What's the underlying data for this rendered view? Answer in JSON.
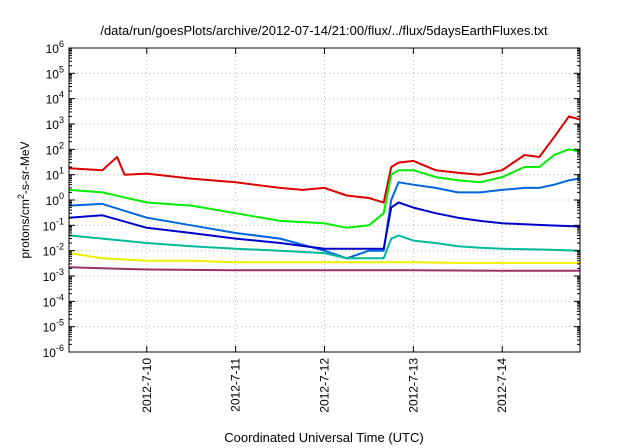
{
  "chart_data": {
    "type": "line",
    "title": "/data/run/goesPlots/archive/2012-07-14/21:00/flux/../flux/5daysEarthFluxes.txt",
    "xlabel": "Coordinated Universal Time (UTC)",
    "ylabel": {
      "base": "protons/cm",
      "sup": "2",
      "rest": "-s-sr-MeV"
    },
    "x_range": [
      "2012-07-09T03:00",
      "2012-07-14T21:00"
    ],
    "x_ticks": [
      "2012-7-10",
      "2012-7-11",
      "2012-7-12",
      "2012-7-13",
      "2012-7-14"
    ],
    "y_scale": "log",
    "y_range": [
      1e-06,
      1000000.0
    ],
    "y_ticks": [
      {
        "base": "10",
        "exp": "-6"
      },
      {
        "base": "10",
        "exp": "-5"
      },
      {
        "base": "10",
        "exp": "-4"
      },
      {
        "base": "10",
        "exp": "-3"
      },
      {
        "base": "10",
        "exp": "-2"
      },
      {
        "base": "10",
        "exp": "-1"
      },
      {
        "base": "10",
        "exp": "0"
      },
      {
        "base": "10",
        "exp": "1"
      },
      {
        "base": "10",
        "exp": "2"
      },
      {
        "base": "10",
        "exp": "3"
      },
      {
        "base": "10",
        "exp": "4"
      },
      {
        "base": "10",
        "exp": "5"
      },
      {
        "base": "10",
        "exp": "6"
      }
    ],
    "grid": true,
    "series": [
      {
        "color": "#dd0000",
        "x": [
          "2012-07-09T03:00",
          "2012-07-09T12:00",
          "2012-07-09T16:00",
          "2012-07-09T18:00",
          "2012-07-10T00:00",
          "2012-07-10T12:00",
          "2012-07-11T00:00",
          "2012-07-11T12:00",
          "2012-07-11T18:00",
          "2012-07-12T00:00",
          "2012-07-12T06:00",
          "2012-07-12T12:00",
          "2012-07-12T16:00",
          "2012-07-12T18:00",
          "2012-07-12T20:00",
          "2012-07-13T00:00",
          "2012-07-13T06:00",
          "2012-07-13T12:00",
          "2012-07-13T18:00",
          "2012-07-14T00:00",
          "2012-07-14T06:00",
          "2012-07-14T10:00",
          "2012-07-14T14:00",
          "2012-07-14T18:00",
          "2012-07-14T21:00"
        ],
        "y": [
          18,
          15,
          50,
          10,
          11,
          7,
          5,
          3,
          2.5,
          3,
          1.5,
          1.2,
          0.8,
          20,
          30,
          35,
          15,
          12,
          10,
          15,
          60,
          50,
          300,
          2000,
          1500
        ]
      },
      {
        "color": "#00ee00",
        "x": [
          "2012-07-09T03:00",
          "2012-07-09T12:00",
          "2012-07-10T00:00",
          "2012-07-10T12:00",
          "2012-07-11T00:00",
          "2012-07-11T12:00",
          "2012-07-12T00:00",
          "2012-07-12T06:00",
          "2012-07-12T12:00",
          "2012-07-12T16:00",
          "2012-07-12T18:00",
          "2012-07-12T20:00",
          "2012-07-13T00:00",
          "2012-07-13T06:00",
          "2012-07-13T12:00",
          "2012-07-13T18:00",
          "2012-07-14T00:00",
          "2012-07-14T06:00",
          "2012-07-14T10:00",
          "2012-07-14T14:00",
          "2012-07-14T18:00",
          "2012-07-14T21:00"
        ],
        "y": [
          2.5,
          2,
          0.8,
          0.6,
          0.3,
          0.15,
          0.12,
          0.08,
          0.1,
          0.3,
          10,
          15,
          15,
          8,
          6,
          5,
          8,
          20,
          20,
          60,
          100,
          80
        ]
      },
      {
        "color": "#0066dd",
        "x": [
          "2012-07-09T03:00",
          "2012-07-09T12:00",
          "2012-07-10T00:00",
          "2012-07-10T12:00",
          "2012-07-11T00:00",
          "2012-07-11T12:00",
          "2012-07-12T00:00",
          "2012-07-12T06:00",
          "2012-07-12T12:00",
          "2012-07-12T16:00",
          "2012-07-12T18:00",
          "2012-07-12T20:00",
          "2012-07-13T00:00",
          "2012-07-13T06:00",
          "2012-07-13T12:00",
          "2012-07-13T18:00",
          "2012-07-14T00:00",
          "2012-07-14T06:00",
          "2012-07-14T10:00",
          "2012-07-14T14:00",
          "2012-07-14T18:00",
          "2012-07-14T21:00"
        ],
        "y": [
          0.6,
          0.7,
          0.2,
          0.1,
          0.05,
          0.03,
          0.01,
          0.005,
          0.01,
          0.01,
          1,
          5,
          4,
          3,
          2,
          2,
          2.5,
          3,
          3,
          4,
          6,
          7
        ]
      },
      {
        "color": "#0000cc",
        "x": [
          "2012-07-09T03:00",
          "2012-07-09T12:00",
          "2012-07-10T00:00",
          "2012-07-10T12:00",
          "2012-07-11T00:00",
          "2012-07-11T12:00",
          "2012-07-12T00:00",
          "2012-07-12T06:00",
          "2012-07-12T12:00",
          "2012-07-12T16:00",
          "2012-07-12T18:00",
          "2012-07-12T20:00",
          "2012-07-13T00:00",
          "2012-07-13T06:00",
          "2012-07-13T12:00",
          "2012-07-13T18:00",
          "2012-07-14T00:00",
          "2012-07-14T12:00",
          "2012-07-14T21:00"
        ],
        "y": [
          0.2,
          0.25,
          0.08,
          0.05,
          0.03,
          0.02,
          0.012,
          0.012,
          0.012,
          0.012,
          0.5,
          0.8,
          0.5,
          0.3,
          0.2,
          0.15,
          0.12,
          0.1,
          0.09
        ]
      },
      {
        "color": "#00bb99",
        "x": [
          "2012-07-09T03:00",
          "2012-07-09T12:00",
          "2012-07-10T00:00",
          "2012-07-10T12:00",
          "2012-07-11T00:00",
          "2012-07-11T12:00",
          "2012-07-12T00:00",
          "2012-07-12T06:00",
          "2012-07-12T12:00",
          "2012-07-12T16:00",
          "2012-07-12T18:00",
          "2012-07-12T20:00",
          "2012-07-13T00:00",
          "2012-07-13T06:00",
          "2012-07-13T12:00",
          "2012-07-13T18:00",
          "2012-07-14T00:00",
          "2012-07-14T12:00",
          "2012-07-14T21:00"
        ],
        "y": [
          0.04,
          0.03,
          0.02,
          0.015,
          0.012,
          0.01,
          0.008,
          0.005,
          0.005,
          0.005,
          0.03,
          0.04,
          0.025,
          0.02,
          0.015,
          0.013,
          0.012,
          0.011,
          0.01
        ]
      },
      {
        "color": "#eeee00",
        "x": [
          "2012-07-09T03:00",
          "2012-07-09T12:00",
          "2012-07-10T00:00",
          "2012-07-10T12:00",
          "2012-07-11T00:00",
          "2012-07-11T12:00",
          "2012-07-12T00:00",
          "2012-07-12T12:00",
          "2012-07-13T00:00",
          "2012-07-13T12:00",
          "2012-07-14T00:00",
          "2012-07-14T12:00",
          "2012-07-14T21:00"
        ],
        "y": [
          0.008,
          0.005,
          0.004,
          0.004,
          0.0035,
          0.0035,
          0.0035,
          0.0035,
          0.0035,
          0.0033,
          0.0033,
          0.0033,
          0.0033
        ]
      },
      {
        "color": "#993366",
        "x": [
          "2012-07-09T03:00",
          "2012-07-10T00:00",
          "2012-07-11T00:00",
          "2012-07-12T00:00",
          "2012-07-13T00:00",
          "2012-07-14T00:00",
          "2012-07-14T21:00"
        ],
        "y": [
          0.0022,
          0.0018,
          0.0017,
          0.0017,
          0.0017,
          0.0016,
          0.0016
        ]
      }
    ]
  }
}
